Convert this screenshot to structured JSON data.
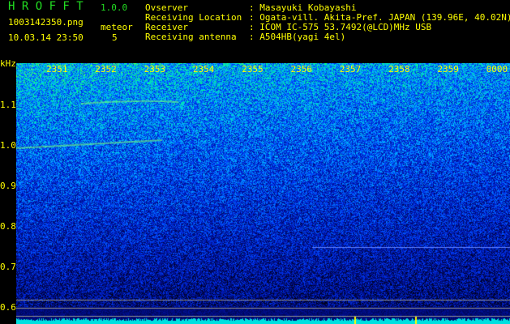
{
  "app": {
    "name": "H R O F F T",
    "version": "1.0.0"
  },
  "file": {
    "name": "1003142350.png",
    "datetime": "10.03.14 23:50"
  },
  "meteor": {
    "label": "meteor",
    "count": "5"
  },
  "info": [
    {
      "label": "Ovserver",
      "value": ": Masayuki Kobayashi"
    },
    {
      "label": "Receiving Location",
      "value": ": Ogata-vill. Akita-Pref. JAPAN (139.96E, 40.02N)"
    },
    {
      "label": "Receiver",
      "value": ": ICOM IC-575 53.7492(@LCD)MHz USB"
    },
    {
      "label": "Receiving antenna",
      "value": ": A504HB(yagi 4el)"
    }
  ],
  "spectrogram": {
    "y_unit": "kHz",
    "y_ticks": [
      "1.1",
      "1.0",
      "0.9",
      "0.8",
      "0.7",
      "0.6"
    ],
    "time_ticks": [
      "2351",
      "2352",
      "2353",
      "2354",
      "2355",
      "2356",
      "2357",
      "2358",
      "2359",
      "0000"
    ],
    "colormap": [
      "#000010",
      "#0010a0",
      "#0040ff",
      "#00c0ff",
      "#00ff80",
      "#ffff00",
      "#ff0000"
    ]
  }
}
